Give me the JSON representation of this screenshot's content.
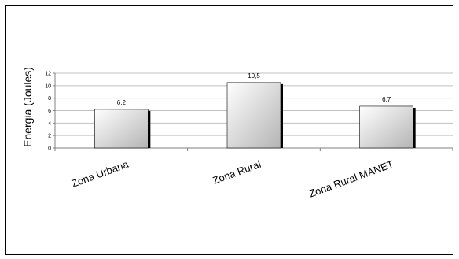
{
  "chart_data": {
    "type": "bar",
    "categories": [
      "Zona Urbana",
      "Zona Rural",
      "Zona Rural MANET"
    ],
    "values": [
      6.2,
      10.5,
      6.7
    ],
    "value_labels": [
      "6,2",
      "10,5",
      "6,7"
    ],
    "title": "",
    "xlabel": "",
    "ylabel": "Energia (Joules)",
    "ylim": [
      0,
      12
    ],
    "yticks": [
      0,
      2,
      4,
      6,
      8,
      10,
      12
    ],
    "grid": true,
    "legend": "none",
    "colors": {
      "bar_light": "#ffffff",
      "bar_dark": "#b4b4b4",
      "bar_shadow": "#000000",
      "gridline": "#c0c0c0",
      "axis": "#808080"
    }
  }
}
